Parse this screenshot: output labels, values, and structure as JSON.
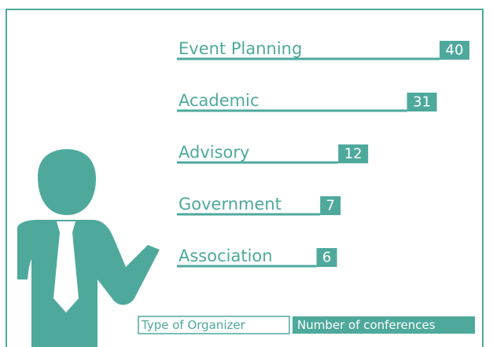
{
  "chart_data": {
    "type": "bar",
    "categories": [
      "Event Planning",
      "Academic",
      "Advisory",
      "Government",
      "Association"
    ],
    "values": [
      40,
      31,
      12,
      7,
      6
    ],
    "color": "#4ea99c",
    "x_label": "Type of Organizer",
    "y_label": "Number of conferences"
  }
}
